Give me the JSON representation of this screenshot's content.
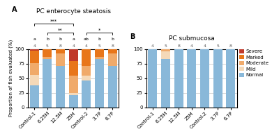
{
  "chart_data": [
    {
      "type": "bar",
      "stacked": true,
      "panel_label": "A",
      "title": "PC enterocyte steatosis",
      "y_label": "Proportion of fish evaluated (%)",
      "categories": [
        "Control-1",
        "6.25M",
        "12.5M",
        "25M",
        "Control-2",
        "3.7P",
        "6.7P"
      ],
      "series": [
        {
          "name": "Normal",
          "color": "#89b8d9",
          "values": [
            38,
            83,
            71,
            21,
            46,
            83,
            71
          ]
        },
        {
          "name": "Mild",
          "color": "#f5d9b8",
          "values": [
            17,
            0,
            0,
            4,
            8,
            0,
            0
          ]
        },
        {
          "name": "Moderate",
          "color": "#f0aa6a",
          "values": [
            21,
            4,
            21,
            29,
            17,
            4,
            21
          ]
        },
        {
          "name": "Marked",
          "color": "#e8761a",
          "values": [
            21,
            13,
            8,
            25,
            29,
            13,
            8
          ]
        },
        {
          "name": "Severe",
          "color": "#c0392b",
          "values": [
            3,
            0,
            0,
            21,
            0,
            0,
            0
          ]
        }
      ],
      "ylim": [
        0,
        100
      ],
      "yticks": [
        0,
        25,
        50,
        75,
        100
      ],
      "grid": true,
      "bar_top_labels": [
        "4",
        "5",
        "8",
        "4",
        "4",
        "5",
        "8"
      ],
      "letter_labels": [
        "a",
        "b",
        "b",
        "a",
        "ab",
        "b",
        "b"
      ],
      "brackets": [
        {
          "from": "Control-1",
          "to": "25M",
          "label": "***"
        },
        {
          "from": "6.25M",
          "to": "25M",
          "label": "**"
        },
        {
          "from": "Control-2",
          "to": "6.7P",
          "label": "*"
        }
      ]
    },
    {
      "type": "bar",
      "stacked": true,
      "panel_label": "B",
      "title": "PC submucosa",
      "categories": [
        "Control-1",
        "6.25M",
        "12.5M",
        "25M",
        "Control-2",
        "3.7P",
        "6.7P"
      ],
      "series": [
        {
          "name": "Normal",
          "color": "#89b8d9",
          "values": [
            100,
            83,
            100,
            100,
            100,
            100,
            100
          ]
        },
        {
          "name": "Mild",
          "color": "#f5d9b8",
          "values": [
            0,
            13,
            0,
            0,
            0,
            0,
            0
          ]
        },
        {
          "name": "Moderate",
          "color": "#f0aa6a",
          "values": [
            0,
            4,
            0,
            0,
            0,
            0,
            0
          ]
        },
        {
          "name": "Marked",
          "color": "#e8761a",
          "values": [
            0,
            0,
            0,
            0,
            0,
            0,
            0
          ]
        },
        {
          "name": "Severe",
          "color": "#c0392b",
          "values": [
            0,
            0,
            0,
            0,
            0,
            0,
            0
          ]
        }
      ],
      "ylim": [
        0,
        100
      ],
      "yticks": [
        0,
        25,
        50,
        75,
        100
      ],
      "grid": true,
      "bar_top_labels": [
        "4",
        "5",
        "8",
        "4",
        "4",
        "5",
        "8"
      ],
      "legend": "upper left"
    }
  ]
}
